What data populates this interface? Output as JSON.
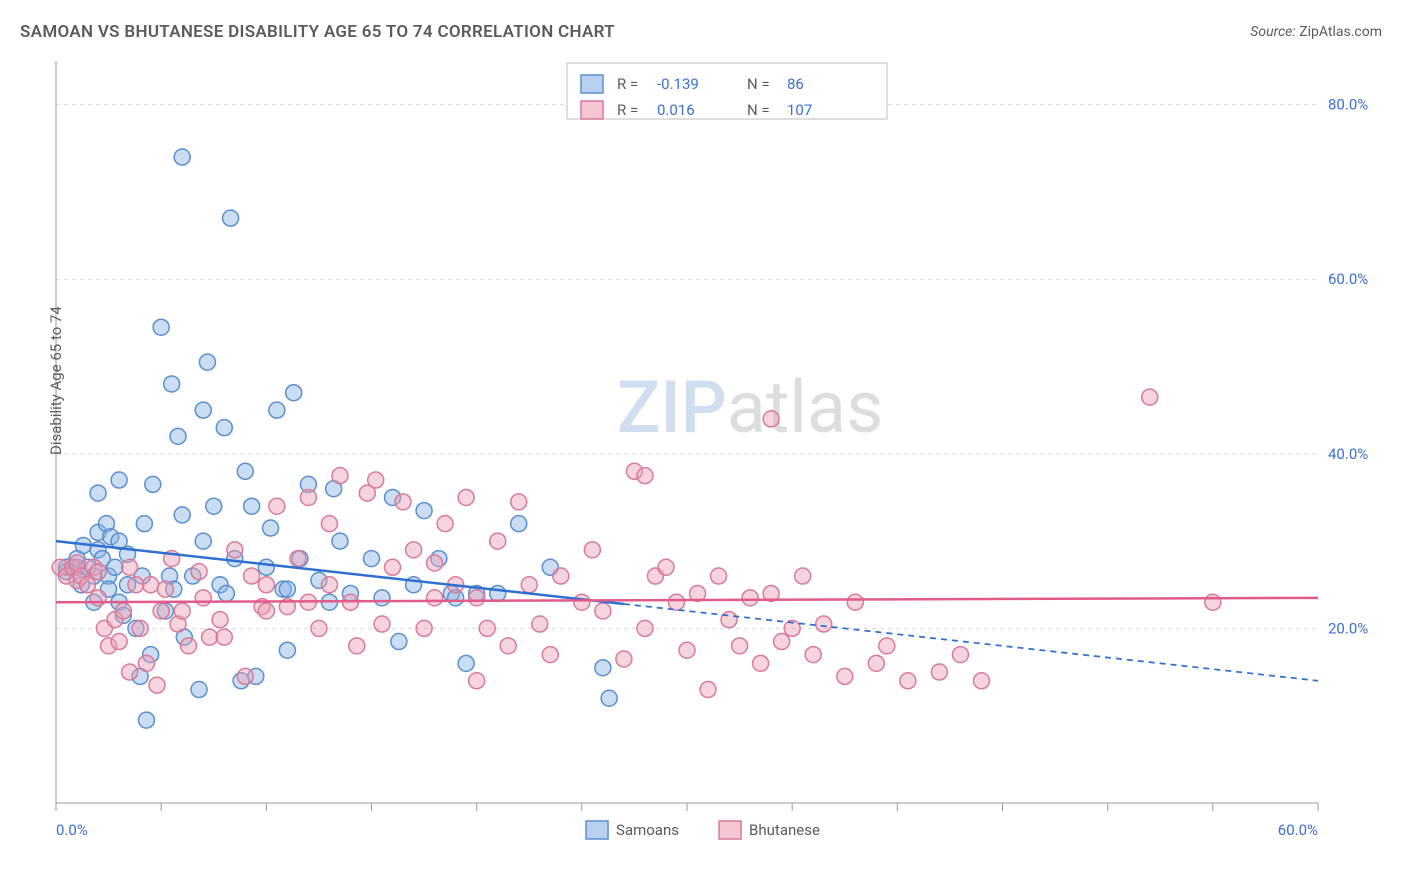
{
  "title": "SAMOAN VS BHUTANESE DISABILITY AGE 65 TO 74 CORRELATION CHART",
  "source_label": "Source:",
  "source_value": "ZipAtlas.com",
  "y_axis_title": "Disability Age 65 to 74",
  "watermark_a": "ZIP",
  "watermark_b": "atlas",
  "chart": {
    "type": "scatter",
    "background_color": "#ffffff",
    "plot_border_color": "#bcbcbc",
    "grid_color": "#d9d9d9",
    "grid_dash": "4,4",
    "xlim": [
      0,
      60
    ],
    "ylim": [
      0,
      85
    ],
    "x_ticks": [
      0,
      5,
      10,
      15,
      20,
      25,
      30,
      35,
      40,
      45,
      50,
      55,
      60
    ],
    "x_tick_labels": {
      "0": "0.0%",
      "60": "60.0%"
    },
    "y_gridlines": [
      0,
      20,
      40,
      60,
      80
    ],
    "y_tick_labels": {
      "20": "20.0%",
      "40": "40.0%",
      "60": "60.0%",
      "80": "80.0%"
    },
    "tick_label_color": "#3b6fd6",
    "tick_label_fontsize": 15,
    "axis_line_color": "#9a9a9a",
    "marker_radius": 8,
    "marker_stroke_width": 1.5,
    "series": [
      {
        "name": "Samoans",
        "fill": "rgba(137,179,226,0.45)",
        "stroke": "#5a8fd0",
        "trend": {
          "color": "#2f6fd0",
          "width": 2.5,
          "y_at_x0": 30,
          "y_at_x60": 14,
          "solid_until_x": 27,
          "dash": "6,5"
        },
        "points": [
          [
            0.5,
            27
          ],
          [
            0.5,
            26.5
          ],
          [
            0.8,
            27
          ],
          [
            1,
            27
          ],
          [
            1,
            28
          ],
          [
            1.2,
            25
          ],
          [
            1.3,
            29.5
          ],
          [
            1.5,
            27
          ],
          [
            1.8,
            26
          ],
          [
            1.8,
            23
          ],
          [
            2,
            31
          ],
          [
            2,
            29
          ],
          [
            2,
            35.5
          ],
          [
            2.2,
            28
          ],
          [
            2.4,
            32
          ],
          [
            2.5,
            26
          ],
          [
            2.5,
            24.5
          ],
          [
            2.6,
            30.5
          ],
          [
            2.8,
            27
          ],
          [
            3,
            23
          ],
          [
            3,
            37
          ],
          [
            3,
            30
          ],
          [
            3.2,
            21.5
          ],
          [
            3.4,
            25
          ],
          [
            3.4,
            28.5
          ],
          [
            3.8,
            20
          ],
          [
            4,
            14.5
          ],
          [
            4.1,
            26
          ],
          [
            4.2,
            32
          ],
          [
            4.3,
            9.5
          ],
          [
            4.5,
            17
          ],
          [
            4.6,
            36.5
          ],
          [
            5,
            54.5
          ],
          [
            5.2,
            22
          ],
          [
            5.4,
            26
          ],
          [
            5.5,
            48
          ],
          [
            5.6,
            24.5
          ],
          [
            5.8,
            42
          ],
          [
            6,
            33
          ],
          [
            6,
            74
          ],
          [
            6.1,
            19
          ],
          [
            6.5,
            26
          ],
          [
            6.8,
            13
          ],
          [
            7,
            45
          ],
          [
            7,
            30
          ],
          [
            7.2,
            50.5
          ],
          [
            7.5,
            34
          ],
          [
            7.8,
            25
          ],
          [
            8,
            43
          ],
          [
            8.1,
            24
          ],
          [
            8.3,
            67
          ],
          [
            8.5,
            28
          ],
          [
            8.8,
            14
          ],
          [
            9,
            38
          ],
          [
            9.3,
            34
          ],
          [
            9.5,
            14.5
          ],
          [
            10,
            27
          ],
          [
            10.2,
            31.5
          ],
          [
            10.5,
            45
          ],
          [
            10.8,
            24.5
          ],
          [
            11,
            17.5
          ],
          [
            11,
            24.5
          ],
          [
            11.3,
            47
          ],
          [
            11.6,
            28
          ],
          [
            12,
            36.5
          ],
          [
            12.5,
            25.5
          ],
          [
            13,
            23
          ],
          [
            13.2,
            36
          ],
          [
            13.5,
            30
          ],
          [
            14,
            24
          ],
          [
            15,
            28
          ],
          [
            15.5,
            23.5
          ],
          [
            16,
            35
          ],
          [
            16.3,
            18.5
          ],
          [
            17,
            25
          ],
          [
            17.5,
            33.5
          ],
          [
            18.2,
            28
          ],
          [
            18.8,
            24
          ],
          [
            19,
            23.5
          ],
          [
            19.5,
            16
          ],
          [
            20,
            24
          ],
          [
            21,
            24
          ],
          [
            22,
            32
          ],
          [
            23.5,
            27
          ],
          [
            26,
            15.5
          ],
          [
            26.3,
            12
          ]
        ]
      },
      {
        "name": "Bhutanese",
        "fill": "rgba(236,160,180,0.45)",
        "stroke": "#d97a9a",
        "trend": {
          "color": "#e05a8a",
          "width": 2.5,
          "y_at_x0": 23,
          "y_at_x60": 23.5,
          "solid_until_x": 60,
          "dash": ""
        },
        "points": [
          [
            0.2,
            27
          ],
          [
            0.5,
            26
          ],
          [
            0.8,
            27
          ],
          [
            1,
            27.5
          ],
          [
            1,
            25.5
          ],
          [
            1.2,
            26
          ],
          [
            1.5,
            25
          ],
          [
            1.8,
            27
          ],
          [
            2,
            23.5
          ],
          [
            2,
            26.5
          ],
          [
            2.3,
            20
          ],
          [
            2.5,
            18
          ],
          [
            2.8,
            21
          ],
          [
            3,
            18.5
          ],
          [
            3.2,
            22
          ],
          [
            3.5,
            27
          ],
          [
            3.5,
            15
          ],
          [
            3.8,
            25
          ],
          [
            4,
            20
          ],
          [
            4.3,
            16
          ],
          [
            4.5,
            25
          ],
          [
            4.8,
            13.5
          ],
          [
            5,
            22
          ],
          [
            5.2,
            24.5
          ],
          [
            5.5,
            28
          ],
          [
            5.8,
            20.5
          ],
          [
            6,
            22
          ],
          [
            6.3,
            18
          ],
          [
            6.8,
            26.5
          ],
          [
            7,
            23.5
          ],
          [
            7.3,
            19
          ],
          [
            7.8,
            21
          ],
          [
            8,
            19
          ],
          [
            8.5,
            29
          ],
          [
            9,
            14.5
          ],
          [
            9.3,
            26
          ],
          [
            9.8,
            22.5
          ],
          [
            10,
            25
          ],
          [
            10,
            22
          ],
          [
            10.5,
            34
          ],
          [
            11,
            22.5
          ],
          [
            11.5,
            28
          ],
          [
            12,
            35
          ],
          [
            12,
            23
          ],
          [
            12.5,
            20
          ],
          [
            13,
            32
          ],
          [
            13,
            25
          ],
          [
            13.5,
            37.5
          ],
          [
            14,
            23
          ],
          [
            14.3,
            18
          ],
          [
            14.8,
            35.5
          ],
          [
            15.2,
            37
          ],
          [
            15.5,
            20.5
          ],
          [
            16,
            27
          ],
          [
            16.5,
            34.5
          ],
          [
            17,
            29
          ],
          [
            17.5,
            20
          ],
          [
            18,
            23.5
          ],
          [
            18,
            27.5
          ],
          [
            18.5,
            32
          ],
          [
            19,
            25
          ],
          [
            19.5,
            35
          ],
          [
            20,
            23.5
          ],
          [
            20.5,
            20
          ],
          [
            21,
            30
          ],
          [
            21.5,
            18
          ],
          [
            22,
            34.5
          ],
          [
            22.5,
            25
          ],
          [
            23,
            20.5
          ],
          [
            23.5,
            17
          ],
          [
            24,
            26
          ],
          [
            25,
            23
          ],
          [
            25.5,
            29
          ],
          [
            26,
            22
          ],
          [
            27,
            16.5
          ],
          [
            27.5,
            38
          ],
          [
            28,
            20
          ],
          [
            28,
            37.5
          ],
          [
            28.5,
            26
          ],
          [
            29,
            27
          ],
          [
            29.5,
            23
          ],
          [
            30,
            17.5
          ],
          [
            30.5,
            24
          ],
          [
            31,
            13
          ],
          [
            31.5,
            26
          ],
          [
            32,
            21
          ],
          [
            32.5,
            18
          ],
          [
            33,
            23.5
          ],
          [
            33.5,
            16
          ],
          [
            34,
            44
          ],
          [
            34,
            24
          ],
          [
            34.5,
            18.5
          ],
          [
            35,
            20
          ],
          [
            35.5,
            26
          ],
          [
            36,
            17
          ],
          [
            36.5,
            20.5
          ],
          [
            37.5,
            14.5
          ],
          [
            38,
            23
          ],
          [
            39,
            16
          ],
          [
            39.5,
            18
          ],
          [
            40.5,
            14
          ],
          [
            42,
            15
          ],
          [
            43,
            17
          ],
          [
            44,
            14
          ],
          [
            52,
            46.5
          ],
          [
            55,
            23
          ],
          [
            20,
            14
          ]
        ]
      }
    ],
    "legend_top": {
      "border_color": "#bcbcbc",
      "bg": "#ffffff",
      "label_r": "R =",
      "label_n": "N =",
      "value_color": "#3b6fd6",
      "rows": [
        {
          "swatch_fill": "rgba(137,179,226,0.6)",
          "swatch_stroke": "#5a8fd0",
          "r": "-0.139",
          "n": "86"
        },
        {
          "swatch_fill": "rgba(236,160,180,0.6)",
          "swatch_stroke": "#d97a9a",
          "r": "0.016",
          "n": "107"
        }
      ]
    },
    "legend_bottom": {
      "items": [
        {
          "swatch_fill": "rgba(137,179,226,0.6)",
          "swatch_stroke": "#5a8fd0",
          "label": "Samoans"
        },
        {
          "swatch_fill": "rgba(236,160,180,0.6)",
          "swatch_stroke": "#d97a9a",
          "label": "Bhutanese"
        }
      ],
      "text_color": "#5b5b5b"
    }
  }
}
